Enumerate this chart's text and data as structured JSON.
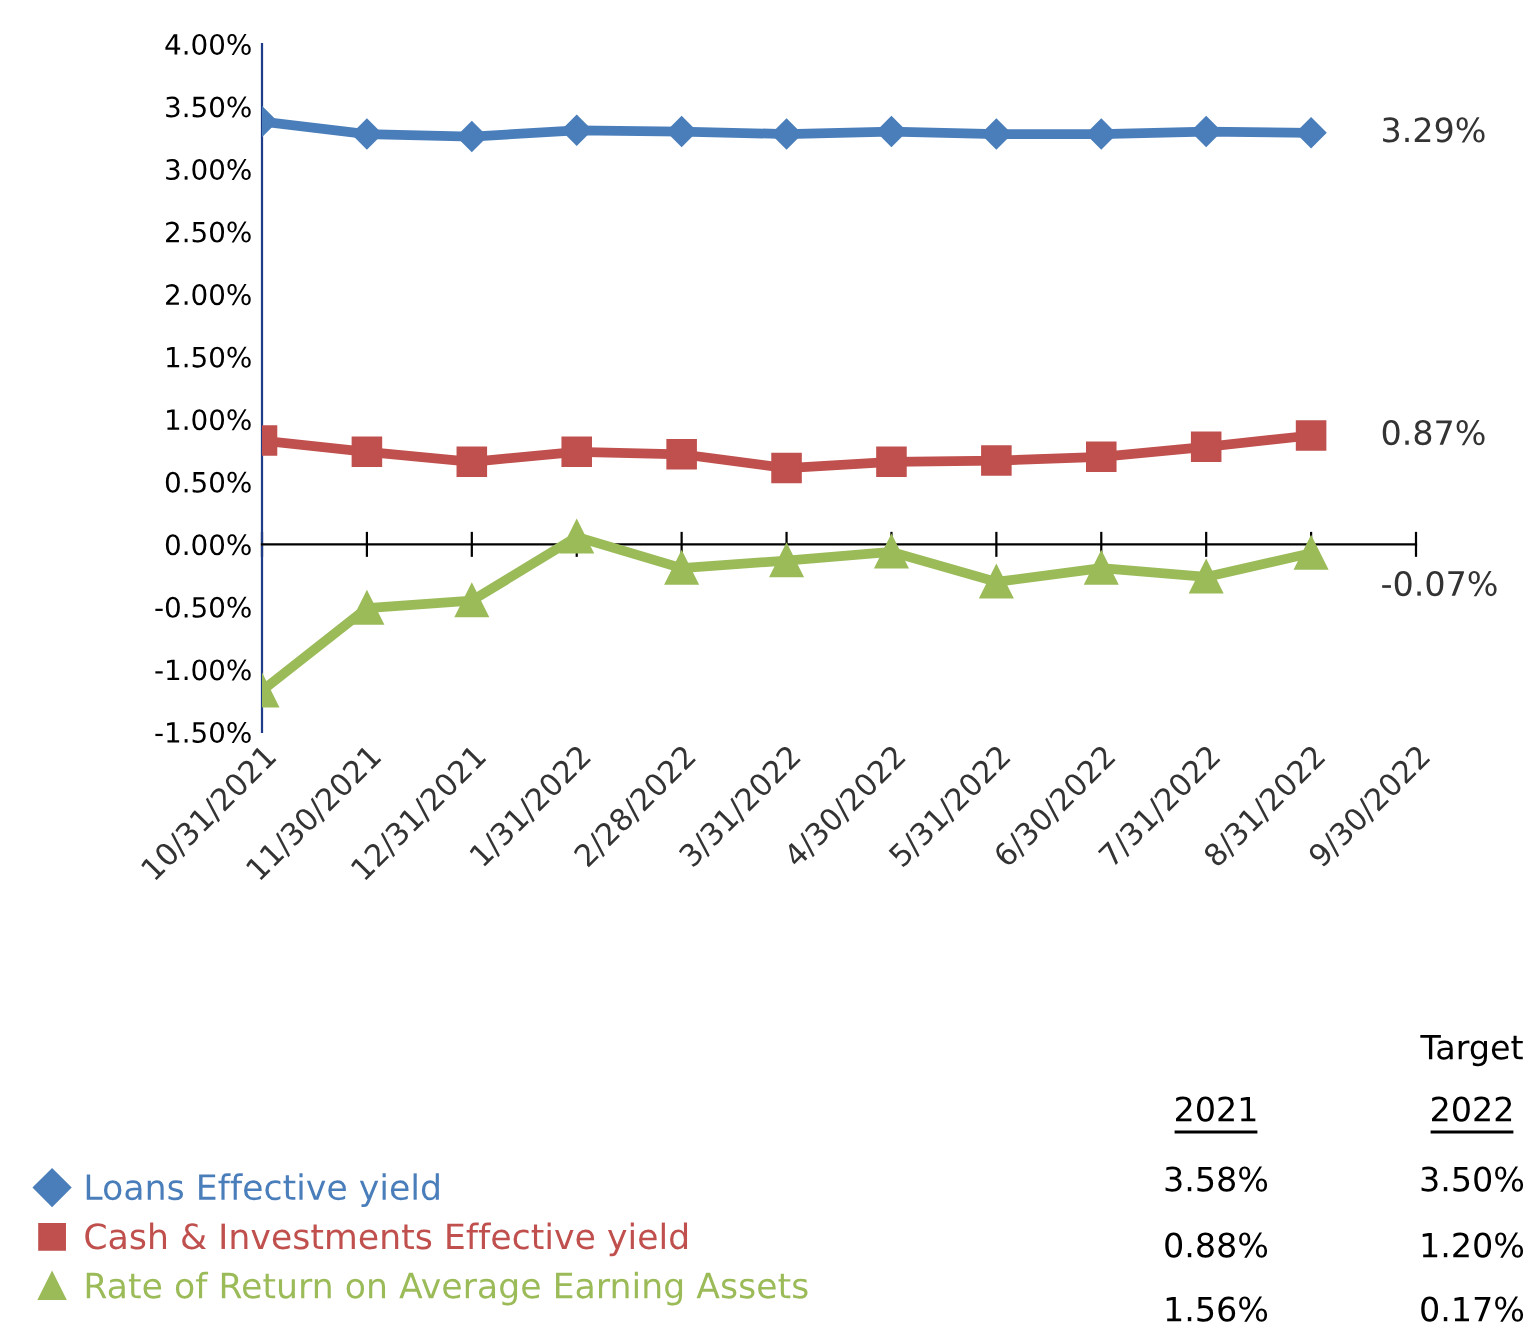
{
  "chart_data": {
    "type": "line",
    "categories": [
      "10/31/2021",
      "11/30/2021",
      "12/31/2021",
      "1/31/2022",
      "2/28/2022",
      "3/31/2022",
      "4/30/2022",
      "5/31/2022",
      "6/30/2022",
      "7/31/2022",
      "8/31/2022",
      "9/30/2022"
    ],
    "series": [
      {
        "name": "Loans Effective yield",
        "color": "#4a7ebb",
        "marker": "diamond",
        "values": [
          3.38,
          3.28,
          3.26,
          3.31,
          3.3,
          3.28,
          3.3,
          3.28,
          3.28,
          3.3,
          3.29,
          null
        ]
      },
      {
        "name": "Cash & Investments Effective yield",
        "color": "#c0504d",
        "marker": "square",
        "values": [
          0.83,
          0.74,
          0.66,
          0.74,
          0.72,
          0.61,
          0.66,
          0.67,
          0.7,
          0.78,
          0.87,
          null
        ]
      },
      {
        "name": "Rate of Return on Average Earning Assets",
        "color": "#9bbb59",
        "marker": "triangle",
        "values": [
          -1.17,
          -0.51,
          -0.45,
          0.06,
          -0.19,
          -0.13,
          -0.06,
          -0.3,
          -0.19,
          -0.26,
          -0.07,
          null
        ]
      }
    ],
    "ylim": [
      -1.5,
      4.0
    ],
    "yticks": [
      {
        "value": -1.5,
        "label": "-1.50%"
      },
      {
        "value": -1.0,
        "label": "-1.00%"
      },
      {
        "value": -0.5,
        "label": "-0.50%"
      },
      {
        "value": 0,
        "label": "0.00%"
      },
      {
        "value": 0.5,
        "label": "0.50%"
      },
      {
        "value": 1.0,
        "label": "1.00%"
      },
      {
        "value": 1.5,
        "label": "1.50%"
      },
      {
        "value": 2.0,
        "label": "2.00%"
      },
      {
        "value": 2.5,
        "label": "2.50%"
      },
      {
        "value": 3.0,
        "label": "3.00%"
      },
      {
        "value": 3.5,
        "label": "3.50%"
      },
      {
        "value": 4.0,
        "label": "4.00%"
      }
    ],
    "legend": "bottom",
    "line_style": "solid",
    "annotations": [
      {
        "text": "3.29%",
        "x": "8/31/2022",
        "y": 3.29
      },
      {
        "text": "0.87%",
        "x": "8/31/2022",
        "y": 0.87
      },
      {
        "text": "-0.07%",
        "x": "8/31/2022",
        "y": -0.07
      },
      "Target",
      "2021",
      "2022",
      "3.58%",
      "3.50%",
      "0.88%",
      "1.20%",
      "1.56%",
      "0.17%"
    ]
  }
}
